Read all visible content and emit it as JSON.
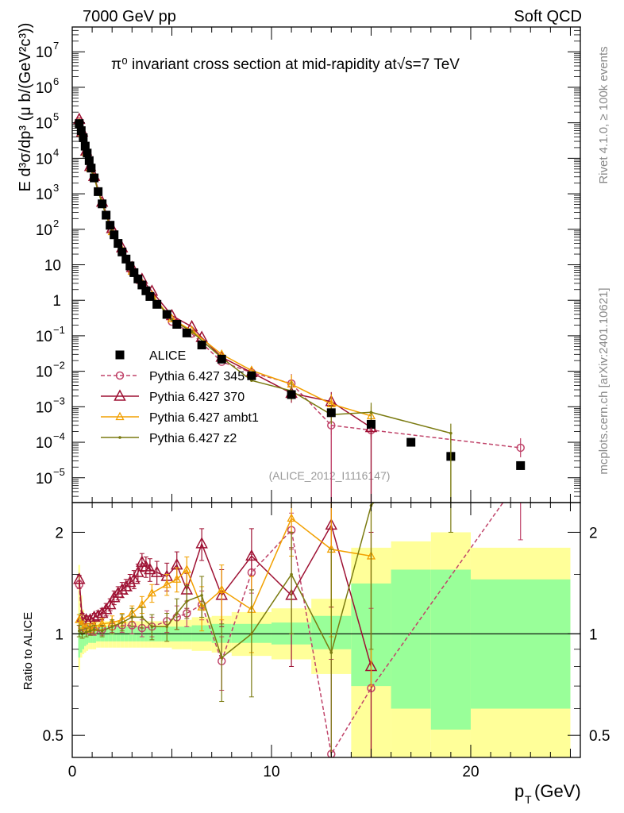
{
  "header": {
    "left": "7000 GeV pp",
    "right": "Soft QCD"
  },
  "side": {
    "rivet": "Rivet 4.1.0, ≥ 100k events",
    "mcplots": "mcplots.cern.ch [arXiv:2401.10621]"
  },
  "plot_title": "π⁰ invariant cross section at mid-rapidity at√s=7 TeV",
  "analysis_label": "(ALICE_2012_I1116147)",
  "colors": {
    "alice": "#000000",
    "p345": "#c0446a",
    "p370": "#9e1133",
    "ambt1": "#f2a000",
    "z2": "#7a7a10",
    "band_inner": "#99ff99",
    "band_outer": "#ffff99"
  },
  "chart_data": [
    {
      "type": "scatter",
      "name": "main",
      "title": "π⁰ invariant cross section at mid-rapidity at√s=7 TeV",
      "xlabel": "p_T (GeV)",
      "ylabel": "E d³σ/dp³ (μ b/(GeV²c³))",
      "xlim": [
        0,
        25.5
      ],
      "ylim": [
        2e-06,
        50000000.0
      ],
      "yscale": "log",
      "xticks": [
        0,
        10,
        20
      ],
      "yticks": [
        {
          "v": 1e-05,
          "base": "10",
          "exp": "−5"
        },
        {
          "v": 0.0001,
          "base": "10",
          "exp": "−4"
        },
        {
          "v": 0.001,
          "base": "10",
          "exp": "−3"
        },
        {
          "v": 0.01,
          "base": "10",
          "exp": "−2"
        },
        {
          "v": 0.1,
          "base": "10",
          "exp": "−1"
        },
        {
          "v": 1,
          "base": "1",
          "exp": ""
        },
        {
          "v": 10,
          "base": "10",
          "exp": ""
        },
        {
          "v": 100,
          "base": "10",
          "exp": "2"
        },
        {
          "v": 1000,
          "base": "10",
          "exp": "3"
        },
        {
          "v": 10000,
          "base": "10",
          "exp": "4"
        },
        {
          "v": 100000,
          "base": "10",
          "exp": "5"
        },
        {
          "v": 1000000,
          "base": "10",
          "exp": "6"
        },
        {
          "v": 10000000,
          "base": "10",
          "exp": "7"
        }
      ],
      "legend": [
        {
          "key": "alice",
          "label": "ALICE"
        },
        {
          "key": "p345",
          "label": "Pythia 6.427 345"
        },
        {
          "key": "p370",
          "label": "Pythia 6.427 370"
        },
        {
          "key": "ambt1",
          "label": "Pythia 6.427 ambt1"
        },
        {
          "key": "z2",
          "label": "Pythia 6.427 z2"
        }
      ],
      "series": [
        {
          "key": "alice",
          "name": "ALICE",
          "marker": "square",
          "x": [
            0.35,
            0.45,
            0.55,
            0.65,
            0.75,
            0.85,
            0.95,
            1.1,
            1.3,
            1.5,
            1.7,
            1.9,
            2.1,
            2.3,
            2.5,
            2.7,
            2.9,
            3.1,
            3.3,
            3.5,
            3.7,
            3.9,
            4.25,
            4.75,
            5.25,
            5.75,
            6.5,
            7.5,
            9.0,
            11.0,
            13.0,
            15.0,
            17.0,
            19.0,
            22.5
          ],
          "y": [
            95000,
            60000,
            38000,
            22000,
            14000,
            8600,
            5300,
            2800,
            1150,
            520,
            250,
            130,
            70,
            40,
            23,
            14.5,
            9.3,
            6.0,
            4.0,
            2.7,
            1.85,
            1.28,
            0.77,
            0.4,
            0.21,
            0.12,
            0.055,
            0.022,
            0.0075,
            0.0022,
            0.00068,
            0.00032,
            0.0001,
            4e-05,
            2.2e-05
          ]
        },
        {
          "key": "p345",
          "name": "Pythia 6.427 345",
          "marker": "circle",
          "dashed": true,
          "x": [
            0.35,
            0.5,
            0.7,
            0.9,
            1.1,
            1.5,
            2.0,
            2.5,
            3.0,
            3.5,
            4.0,
            5.0,
            6.0,
            7.5,
            9.0,
            11.0,
            13.0,
            15.0,
            22.5
          ],
          "y": [
            110000,
            50000,
            15000,
            5500,
            2900,
            530,
            90,
            24,
            6.2,
            2.75,
            1.3,
            0.25,
            0.115,
            0.0185,
            0.0092,
            0.0045,
            0.0003,
            0.00022,
            7e-05
          ]
        },
        {
          "key": "p370",
          "name": "Pythia 6.427 370",
          "marker": "triangle",
          "x": [
            0.35,
            0.5,
            0.7,
            0.9,
            1.1,
            1.5,
            2.0,
            2.5,
            3.0,
            3.5,
            4.0,
            5.0,
            6.0,
            6.5,
            7.5,
            9.0,
            11.0,
            13.0,
            15.0
          ],
          "y": [
            125000,
            55000,
            16000,
            5900,
            3100,
            580,
            105,
            30,
            8.4,
            3.9,
            1.8,
            0.37,
            0.18,
            0.09,
            0.025,
            0.0092,
            0.0024,
            0.0014,
            0.00026
          ]
        },
        {
          "key": "ambt1",
          "name": "Pythia 6.427 ambt1",
          "marker": "triangle-small",
          "x": [
            0.35,
            0.5,
            0.7,
            0.9,
            1.1,
            1.5,
            2.0,
            2.5,
            3.0,
            3.5,
            4.0,
            5.0,
            6.0,
            7.5,
            9.0,
            11.0,
            13.0,
            15.0
          ],
          "y": [
            100000,
            50000,
            14500,
            5300,
            2850,
            540,
            85,
            26,
            6.5,
            3.0,
            1.4,
            0.3,
            0.14,
            0.03,
            0.0105,
            0.0043,
            0.0012,
            0.00055
          ]
        },
        {
          "key": "z2",
          "name": "Pythia 6.427 z2",
          "marker": "dot",
          "x": [
            0.35,
            0.5,
            0.7,
            0.9,
            1.1,
            1.5,
            2.0,
            2.5,
            3.0,
            3.5,
            4.0,
            5.0,
            6.0,
            7.5,
            9.0,
            11.0,
            13.0,
            15.0,
            19.0
          ],
          "y": [
            100000,
            48000,
            14200,
            5200,
            2800,
            520,
            82,
            25,
            6.2,
            2.8,
            1.3,
            0.28,
            0.13,
            0.024,
            0.0055,
            0.0028,
            0.0006,
            0.0007,
            0.00018
          ]
        }
      ]
    },
    {
      "type": "line",
      "name": "ratio",
      "ylabel": "Ratio to ALICE",
      "xlabel": "p_T (GeV)",
      "xlim": [
        0,
        25.5
      ],
      "ylim": [
        0.43,
        2.45
      ],
      "yscale": "log",
      "yticks": [
        {
          "v": 0.5,
          "label": "0.5"
        },
        {
          "v": 1,
          "label": "1"
        },
        {
          "v": 2,
          "label": "2"
        }
      ],
      "bands": {
        "edges": [
          0.3,
          0.4,
          0.5,
          0.6,
          0.7,
          0.8,
          0.9,
          1.0,
          1.2,
          1.4,
          1.6,
          1.8,
          2.0,
          2.2,
          2.4,
          2.6,
          2.8,
          3.0,
          3.2,
          3.4,
          3.6,
          3.8,
          4.0,
          4.5,
          5.0,
          5.5,
          6.0,
          7.0,
          8.0,
          10.0,
          12.0,
          14.0,
          16.0,
          18.0,
          20.0,
          25.0
        ],
        "inner_lo": [
          0.85,
          0.88,
          0.9,
          0.92,
          0.93,
          0.94,
          0.94,
          0.94,
          0.95,
          0.95,
          0.95,
          0.95,
          0.95,
          0.95,
          0.95,
          0.95,
          0.95,
          0.95,
          0.95,
          0.95,
          0.95,
          0.95,
          0.95,
          0.95,
          0.95,
          0.95,
          0.95,
          0.94,
          0.94,
          0.93,
          0.9,
          0.7,
          0.6,
          0.52,
          0.6
        ],
        "inner_hi": [
          1.15,
          1.12,
          1.1,
          1.08,
          1.07,
          1.06,
          1.06,
          1.06,
          1.05,
          1.05,
          1.05,
          1.05,
          1.05,
          1.05,
          1.05,
          1.05,
          1.05,
          1.05,
          1.05,
          1.05,
          1.05,
          1.05,
          1.05,
          1.05,
          1.05,
          1.05,
          1.06,
          1.07,
          1.07,
          1.08,
          1.13,
          1.41,
          1.55,
          1.55,
          1.45
        ],
        "outer_lo": [
          0.78,
          0.85,
          0.87,
          0.88,
          0.89,
          0.9,
          0.9,
          0.9,
          0.91,
          0.91,
          0.91,
          0.91,
          0.91,
          0.91,
          0.91,
          0.91,
          0.91,
          0.91,
          0.91,
          0.91,
          0.91,
          0.91,
          0.91,
          0.91,
          0.9,
          0.9,
          0.89,
          0.88,
          0.86,
          0.84,
          0.76,
          0.43,
          0.43,
          0.43,
          0.43
        ],
        "outer_hi": [
          1.6,
          1.3,
          1.18,
          1.14,
          1.12,
          1.1,
          1.1,
          1.09,
          1.09,
          1.09,
          1.09,
          1.09,
          1.09,
          1.09,
          1.09,
          1.09,
          1.09,
          1.09,
          1.09,
          1.09,
          1.09,
          1.09,
          1.09,
          1.09,
          1.1,
          1.1,
          1.12,
          1.13,
          1.16,
          1.19,
          1.27,
          1.8,
          1.88,
          2.0,
          1.8
        ]
      },
      "series": [
        {
          "key": "p345",
          "marker": "circle",
          "dashed": true,
          "x": [
            0.35,
            0.5,
            0.7,
            0.9,
            1.1,
            1.5,
            2.0,
            2.5,
            3.0,
            3.5,
            4.0,
            4.75,
            5.25,
            5.75,
            6.5,
            7.5,
            9.0,
            11.0,
            13.0,
            15.0,
            22.5
          ],
          "y": [
            1.4,
            1.05,
            1.03,
            1.02,
            1.02,
            1.03,
            1.05,
            1.06,
            1.06,
            1.04,
            1.05,
            1.09,
            1.12,
            1.15,
            1.22,
            0.83,
            1.52,
            2.03,
            0.44,
            0.69,
            2.9
          ],
          "err": [
            0.04,
            0.03,
            0.03,
            0.03,
            0.03,
            0.04,
            0.04,
            0.05,
            0.06,
            0.06,
            0.07,
            0.08,
            0.09,
            0.1,
            0.12,
            0.15,
            0.2,
            0.25,
            0.4,
            0.5,
            1.0
          ]
        },
        {
          "key": "p370",
          "marker": "triangle",
          "x": [
            0.35,
            0.5,
            0.7,
            0.9,
            1.1,
            1.3,
            1.5,
            1.7,
            1.9,
            2.1,
            2.3,
            2.5,
            2.7,
            2.9,
            3.1,
            3.3,
            3.5,
            3.7,
            3.9,
            4.25,
            4.75,
            5.25,
            5.75,
            6.5,
            7.5,
            9.0,
            11.0,
            13.0,
            15.0
          ],
          "y": [
            1.45,
            1.12,
            1.1,
            1.1,
            1.12,
            1.13,
            1.15,
            1.18,
            1.22,
            1.28,
            1.32,
            1.35,
            1.38,
            1.42,
            1.45,
            1.52,
            1.63,
            1.58,
            1.55,
            1.52,
            1.48,
            1.6,
            1.35,
            1.85,
            1.3,
            1.7,
            1.3,
            2.1,
            0.8
          ],
          "err": [
            0.04,
            0.03,
            0.03,
            0.03,
            0.03,
            0.04,
            0.04,
            0.05,
            0.05,
            0.06,
            0.06,
            0.07,
            0.07,
            0.08,
            0.09,
            0.09,
            0.1,
            0.11,
            0.12,
            0.12,
            0.14,
            0.15,
            0.16,
            0.2,
            0.25,
            0.35,
            0.5,
            0.9,
            1.2
          ]
        },
        {
          "key": "ambt1",
          "marker": "triangle-small",
          "x": [
            0.35,
            0.5,
            0.7,
            0.9,
            1.1,
            1.5,
            2.0,
            2.5,
            3.0,
            3.5,
            4.0,
            4.75,
            5.25,
            5.75,
            6.5,
            7.5,
            9.0,
            11.0,
            13.0,
            15.0
          ],
          "y": [
            1.1,
            1.06,
            1.04,
            1.04,
            1.05,
            1.07,
            1.08,
            1.1,
            1.15,
            1.22,
            1.32,
            1.4,
            1.45,
            1.55,
            1.2,
            1.35,
            1.18,
            2.2,
            1.78,
            1.7
          ],
          "err": [
            0.04,
            0.03,
            0.03,
            0.03,
            0.03,
            0.04,
            0.05,
            0.05,
            0.06,
            0.07,
            0.08,
            0.1,
            0.12,
            0.14,
            0.18,
            0.25,
            0.3,
            0.5,
            0.8,
            1.0
          ]
        },
        {
          "key": "z2",
          "marker": "dot",
          "x": [
            0.35,
            0.5,
            0.7,
            0.9,
            1.1,
            1.5,
            2.0,
            2.5,
            3.0,
            3.5,
            4.0,
            4.75,
            5.25,
            5.75,
            6.5,
            7.5,
            9.0,
            11.0,
            13.0,
            15.0,
            19.0
          ],
          "y": [
            1.02,
            1.0,
            1.01,
            1.02,
            1.03,
            1.02,
            1.05,
            1.08,
            1.12,
            1.12,
            1.05,
            1.05,
            1.15,
            1.25,
            1.3,
            0.85,
            1.0,
            1.5,
            0.88,
            2.4,
            4.5
          ],
          "err": [
            0.04,
            0.03,
            0.03,
            0.03,
            0.03,
            0.04,
            0.05,
            0.06,
            0.07,
            0.08,
            0.09,
            0.1,
            0.12,
            0.14,
            0.18,
            0.22,
            0.35,
            0.5,
            0.9,
            1.5,
            2.5
          ]
        }
      ]
    }
  ]
}
